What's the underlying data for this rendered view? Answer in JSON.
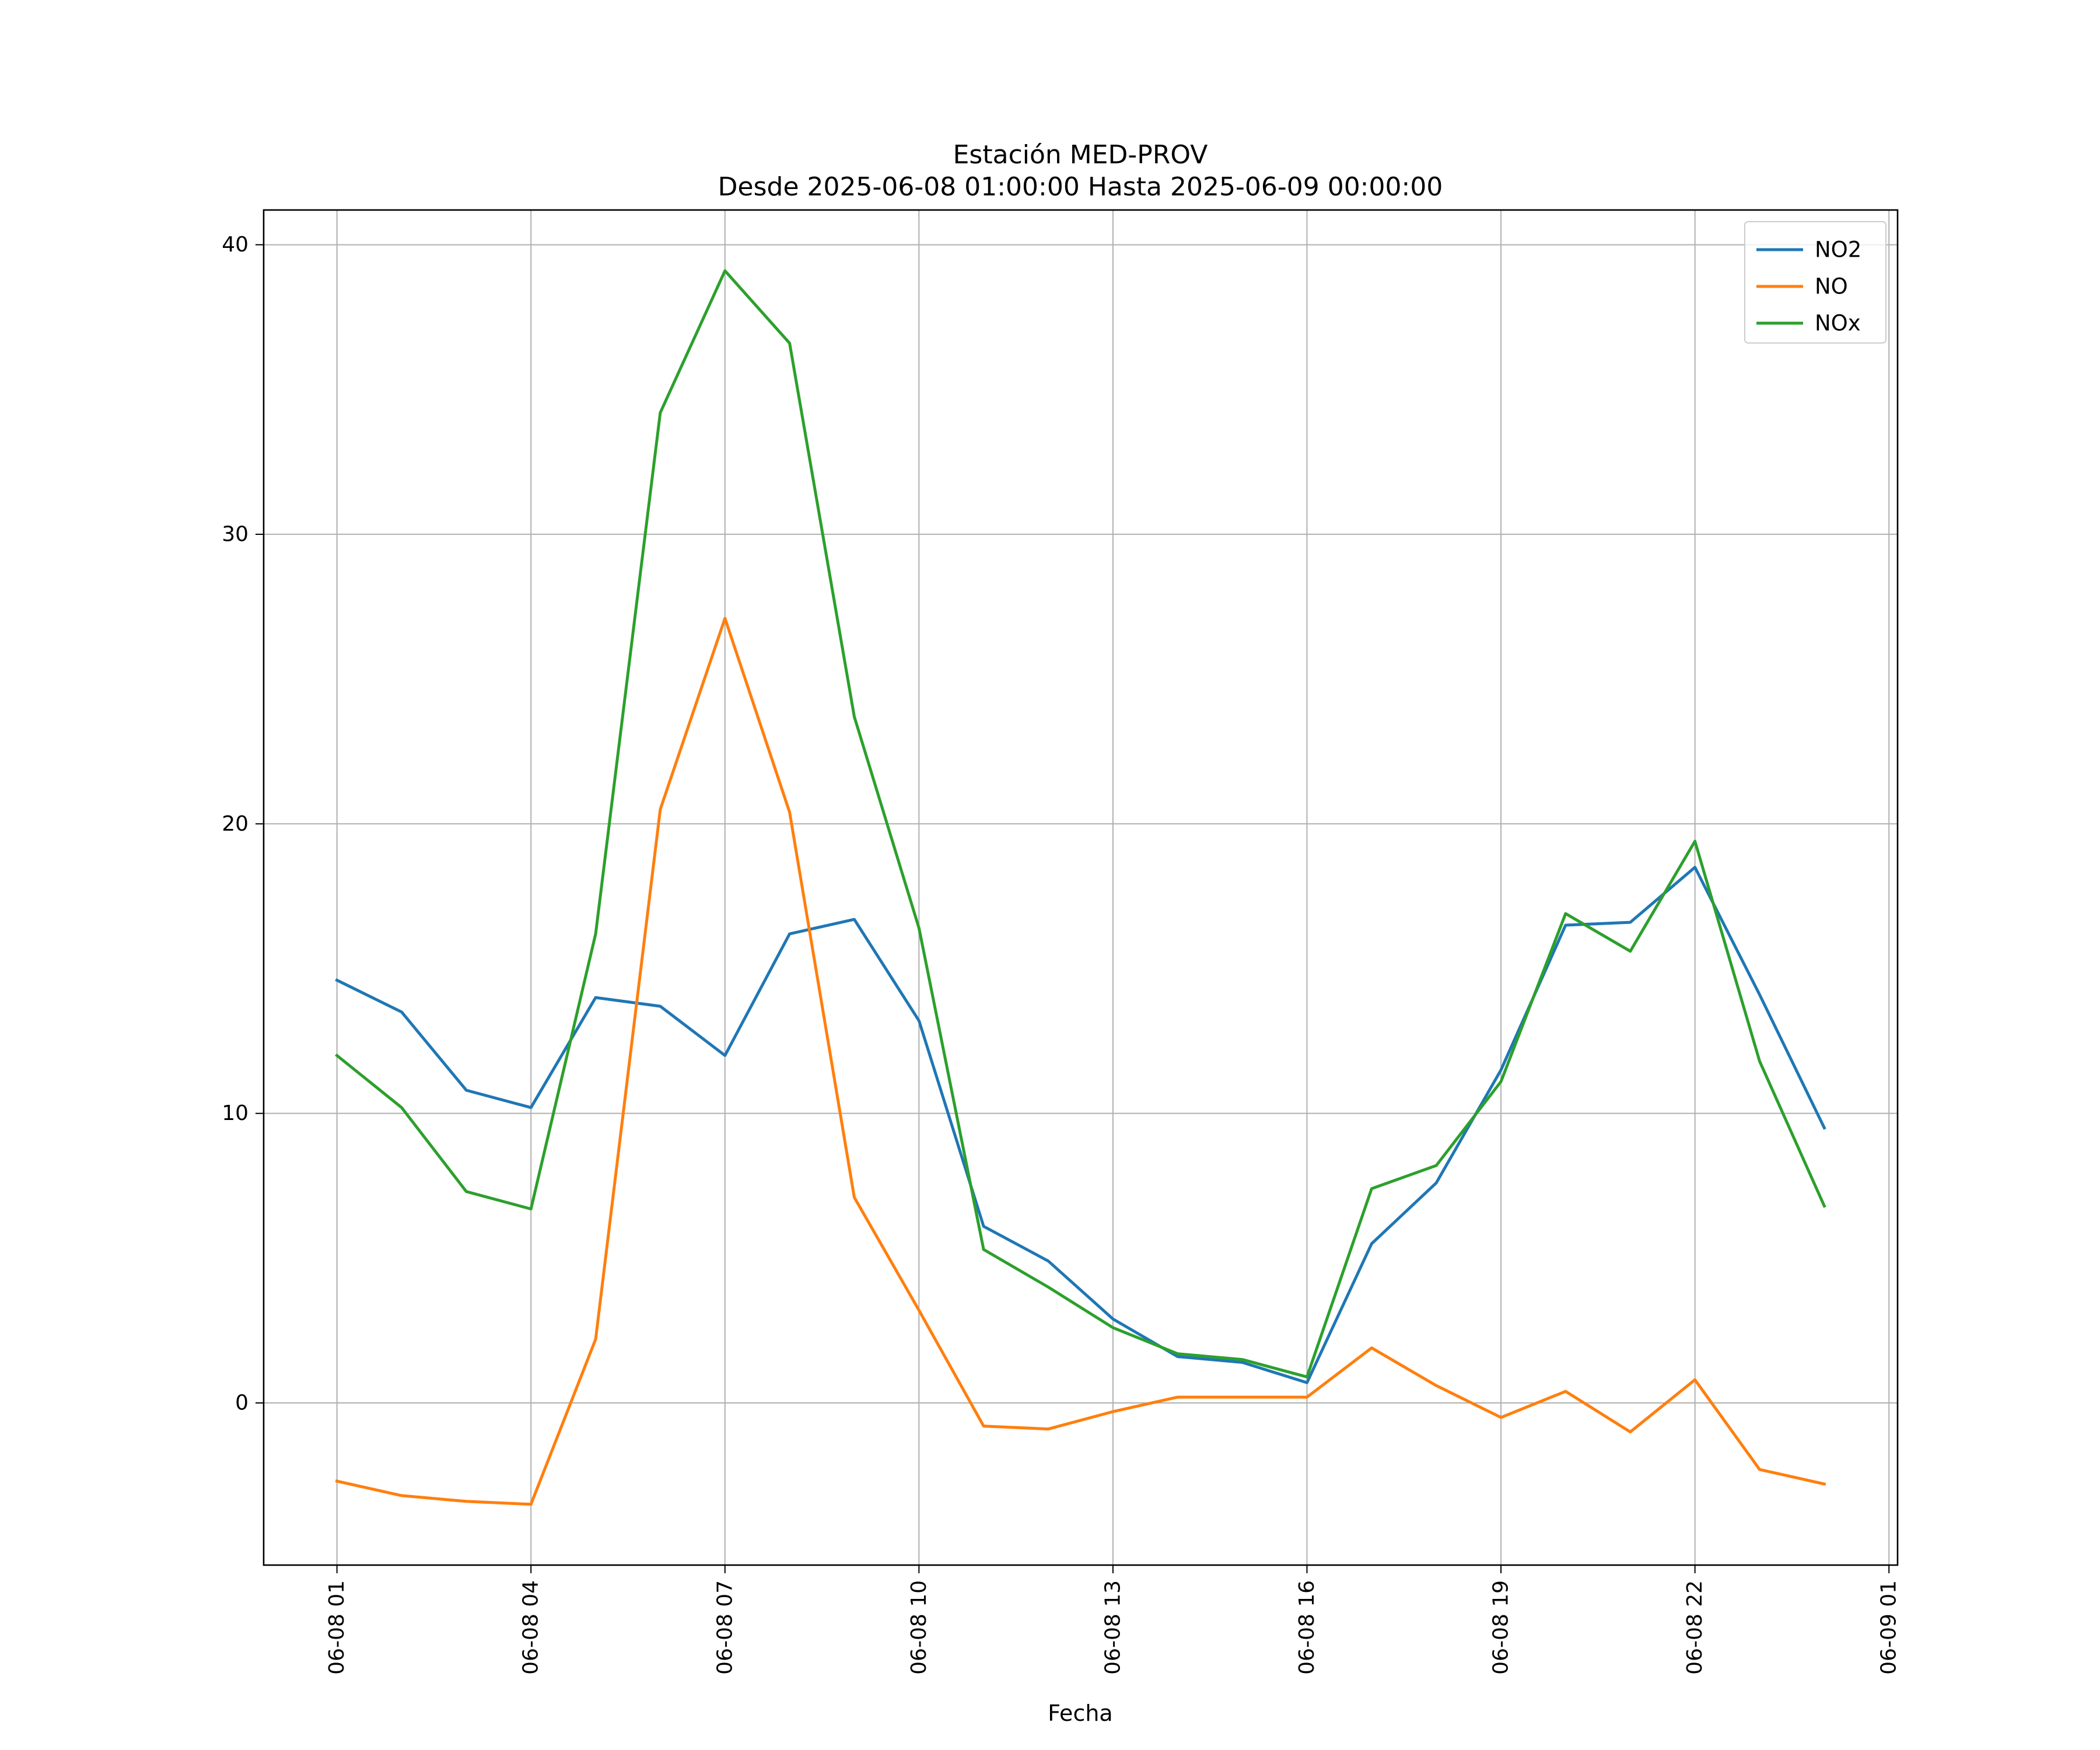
{
  "chart_data": {
    "type": "line",
    "title": "Estación MED-PROV",
    "subtitle": "Desde 2025-06-08 01:00:00 Hasta 2025-06-09 00:00:00",
    "xlabel": "Fecha",
    "ylabel": "",
    "x": [
      "2025-06-08 01:00",
      "2025-06-08 02:00",
      "2025-06-08 03:00",
      "2025-06-08 04:00",
      "2025-06-08 05:00",
      "2025-06-08 06:00",
      "2025-06-08 07:00",
      "2025-06-08 08:00",
      "2025-06-08 09:00",
      "2025-06-08 10:00",
      "2025-06-08 11:00",
      "2025-06-08 12:00",
      "2025-06-08 13:00",
      "2025-06-08 14:00",
      "2025-06-08 15:00",
      "2025-06-08 16:00",
      "2025-06-08 17:00",
      "2025-06-08 18:00",
      "2025-06-08 19:00",
      "2025-06-08 20:00",
      "2025-06-08 21:00",
      "2025-06-08 22:00",
      "2025-06-08 23:00",
      "2025-06-09 00:00"
    ],
    "xlim": [
      "2025-06-07 23:52",
      "2025-06-09 01:08"
    ],
    "ylim": [
      -5.6,
      41.2
    ],
    "x_ticks": [
      "2025-06-08 01:00",
      "2025-06-08 04:00",
      "2025-06-08 07:00",
      "2025-06-08 10:00",
      "2025-06-08 13:00",
      "2025-06-08 16:00",
      "2025-06-08 19:00",
      "2025-06-08 22:00",
      "2025-06-09 01:00"
    ],
    "x_tick_labels": [
      "06-08 01",
      "06-08 04",
      "06-08 07",
      "06-08 10",
      "06-08 13",
      "06-08 16",
      "06-08 19",
      "06-08 22",
      "06-09 01"
    ],
    "y_ticks": [
      0,
      10,
      20,
      30,
      40
    ],
    "y_tick_labels": [
      "0",
      "10",
      "20",
      "30",
      "40"
    ],
    "grid": true,
    "legend": "top-right",
    "series": [
      {
        "name": "NO2",
        "color": "#1f77b4",
        "values": [
          14.6,
          13.5,
          10.8,
          10.2,
          14.0,
          13.7,
          12.0,
          16.2,
          16.7,
          13.2,
          6.1,
          4.9,
          2.9,
          1.6,
          1.4,
          0.7,
          5.5,
          7.6,
          11.5,
          16.5,
          16.6,
          18.5,
          14.1,
          9.5
        ]
      },
      {
        "name": "NO",
        "color": "#ff7f0e",
        "values": [
          -2.7,
          -3.2,
          -3.4,
          -3.5,
          2.2,
          20.5,
          27.1,
          20.4,
          7.1,
          3.2,
          -0.8,
          -0.9,
          -0.3,
          0.2,
          0.2,
          0.2,
          1.9,
          0.6,
          -0.5,
          0.4,
          -1.0,
          0.8,
          -2.3,
          -2.8
        ]
      },
      {
        "name": "NOx",
        "color": "#2ca02c",
        "values": [
          12.0,
          10.2,
          7.3,
          6.7,
          16.2,
          34.2,
          39.1,
          36.6,
          23.7,
          16.4,
          5.3,
          4.0,
          2.6,
          1.7,
          1.5,
          0.9,
          7.4,
          8.2,
          11.1,
          16.9,
          15.6,
          19.4,
          11.8,
          6.8
        ]
      }
    ]
  }
}
